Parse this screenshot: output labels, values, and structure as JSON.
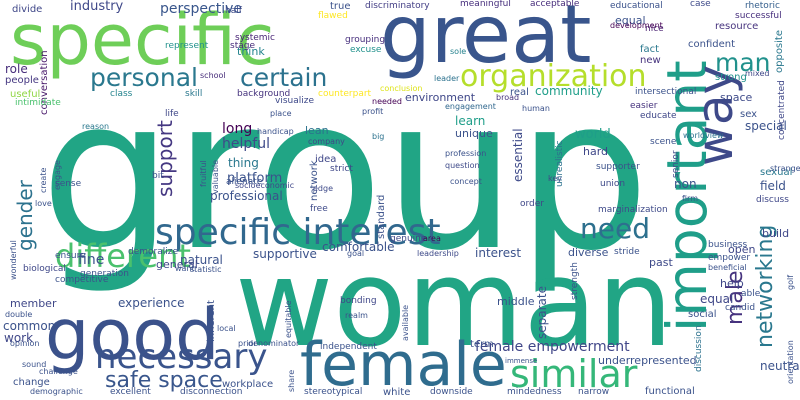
{
  "words": [
    {
      "text": "group",
      "color": "#21a585"
    },
    {
      "text": "woman",
      "color": "#21a585"
    },
    {
      "text": "great",
      "color": "#39558c"
    },
    {
      "text": "specific",
      "color": "#6ece58"
    },
    {
      "text": "important",
      "color": "#1f9e89"
    },
    {
      "text": "female",
      "color": "#2f6c8e"
    },
    {
      "text": "good",
      "color": "#3b528b"
    },
    {
      "text": "way",
      "color": "#3e4989"
    },
    {
      "text": "specific interest",
      "color": "#31688e"
    },
    {
      "text": "organization",
      "color": "#b5de2b"
    },
    {
      "text": "similar",
      "color": "#35b779"
    },
    {
      "text": "personal",
      "color": "#2a788e"
    },
    {
      "text": "certain",
      "color": "#2c728e"
    },
    {
      "text": "different",
      "color": "#4ac16d"
    },
    {
      "text": "necessary",
      "color": "#3a548c"
    },
    {
      "text": "networking",
      "color": "#2a788e"
    },
    {
      "text": "need",
      "color": "#2d708e"
    },
    {
      "text": "man",
      "color": "#21918c"
    },
    {
      "text": "gender",
      "color": "#2c728e"
    },
    {
      "text": "support",
      "color": "#453882"
    },
    {
      "text": "male",
      "color": "#46337e"
    },
    {
      "text": "safe space",
      "color": "#39568c"
    },
    {
      "text": "female empowerment",
      "color": "#404688"
    },
    {
      "text": "industry",
      "color": "#3f4889"
    },
    {
      "text": "perspective",
      "color": "#39568c"
    },
    {
      "text": "divide",
      "color": "#3f4788"
    },
    {
      "text": "conversation",
      "color": "#48186a"
    },
    {
      "text": "role",
      "color": "#472d7b"
    },
    {
      "text": "people",
      "color": "#453781"
    },
    {
      "text": "useful",
      "color": "#8fd744"
    },
    {
      "text": "intimidate",
      "color": "#4ac16d"
    },
    {
      "text": "true",
      "color": "#3b528b"
    },
    {
      "text": "discriminatory",
      "color": "#433e85"
    },
    {
      "text": "meaningful",
      "color": "#472f7d"
    },
    {
      "text": "acceptable",
      "color": "#472d7b"
    },
    {
      "text": "educational",
      "color": "#3b528b"
    },
    {
      "text": "case",
      "color": "#3e4a89"
    },
    {
      "text": "rhetoric",
      "color": "#355f8d"
    },
    {
      "text": "successful",
      "color": "#472f7d"
    },
    {
      "text": "half",
      "color": "#3e4a89"
    },
    {
      "text": "flawed",
      "color": "#fde725"
    },
    {
      "text": "grouping",
      "color": "#472f7d"
    },
    {
      "text": "excuse",
      "color": "#21918c"
    },
    {
      "text": "sole",
      "color": "#26828e"
    },
    {
      "text": "systemic",
      "color": "#482475"
    },
    {
      "text": "think",
      "color": "#25848e"
    },
    {
      "text": "stage",
      "color": "#472c7a"
    },
    {
      "text": "represent",
      "color": "#21918c"
    },
    {
      "text": "equal",
      "color": "#3b528b"
    },
    {
      "text": "nice",
      "color": "#481f70"
    },
    {
      "text": "development",
      "color": "#440154"
    },
    {
      "text": "fact",
      "color": "#2a788e"
    },
    {
      "text": "resource",
      "color": "#46337e"
    },
    {
      "text": "confident",
      "color": "#3b528b"
    },
    {
      "text": "new",
      "color": "#46337e"
    },
    {
      "text": "opposite",
      "color": "#2a788e"
    },
    {
      "text": "mixed",
      "color": "#3f4788"
    },
    {
      "text": "strong",
      "color": "#21918c"
    },
    {
      "text": "school",
      "color": "#472c7a"
    },
    {
      "text": "leader",
      "color": "#2c728e"
    },
    {
      "text": "counterpart",
      "color": "#fde725"
    },
    {
      "text": "background",
      "color": "#46337e"
    },
    {
      "text": "class",
      "color": "#25848e"
    },
    {
      "text": "skill",
      "color": "#2a788e"
    },
    {
      "text": "visualize",
      "color": "#3e4989"
    },
    {
      "text": "conclusion",
      "color": "#dde318"
    },
    {
      "text": "needed",
      "color": "#440154"
    },
    {
      "text": "environment",
      "color": "#3f4788"
    },
    {
      "text": "real",
      "color": "#3b528b"
    },
    {
      "text": "community",
      "color": "#1f9e89"
    },
    {
      "text": "intersectional",
      "color": "#3b528b"
    },
    {
      "text": "easier",
      "color": "#46337e"
    },
    {
      "text": "educate",
      "color": "#3f4788"
    },
    {
      "text": "space",
      "color": "#3e4a89"
    },
    {
      "text": "concentrated",
      "color": "#3f4788"
    },
    {
      "text": "broad",
      "color": "#46337e"
    },
    {
      "text": "engagement",
      "color": "#31688e"
    },
    {
      "text": "human",
      "color": "#3b528b"
    },
    {
      "text": "sex",
      "color": "#3b528b"
    },
    {
      "text": "special",
      "color": "#3b528b"
    },
    {
      "text": "worldview",
      "color": "#2c728e"
    },
    {
      "text": "scene",
      "color": "#3b528b"
    },
    {
      "text": "reason",
      "color": "#2a788e"
    },
    {
      "text": "life",
      "color": "#3f4788"
    },
    {
      "text": "handicap",
      "color": "#3b528b"
    },
    {
      "text": "place",
      "color": "#3b528b"
    },
    {
      "text": "lean",
      "color": "#2c728e"
    },
    {
      "text": "company",
      "color": "#3f4788"
    },
    {
      "text": "profit",
      "color": "#3b528b"
    },
    {
      "text": "learn",
      "color": "#1f9e89"
    },
    {
      "text": "unique",
      "color": "#3b528b"
    },
    {
      "text": "world",
      "color": "#1f9e89"
    },
    {
      "text": "long",
      "color": "#440154"
    },
    {
      "text": "helpful",
      "color": "#3e4a89"
    },
    {
      "text": "thing",
      "color": "#2a788e"
    },
    {
      "text": "platform",
      "color": "#3b528b"
    },
    {
      "text": "professional",
      "color": "#3b528b"
    },
    {
      "text": "idea",
      "color": "#3f4788"
    },
    {
      "text": "network",
      "color": "#3b528b"
    },
    {
      "text": "big",
      "color": "#2c728e"
    },
    {
      "text": "profession",
      "color": "#3b528b"
    },
    {
      "text": "essential",
      "color": "#3e4a89"
    },
    {
      "text": "hard",
      "color": "#3f4788"
    },
    {
      "text": "non",
      "color": "#3b528b"
    },
    {
      "text": "field",
      "color": "#3b528b"
    },
    {
      "text": "firm",
      "color": "#3b528b"
    },
    {
      "text": "discuss",
      "color": "#3f4788"
    },
    {
      "text": "sexual",
      "color": "#2a788e"
    },
    {
      "text": "strange",
      "color": "#3b528b"
    },
    {
      "text": "question",
      "color": "#3e4a89"
    },
    {
      "text": "strict",
      "color": "#3f4788"
    },
    {
      "text": "concept",
      "color": "#3b528b"
    },
    {
      "text": "union",
      "color": "#3e4a89"
    },
    {
      "text": "key",
      "color": "#3f4788"
    },
    {
      "text": "supporter",
      "color": "#3b528b"
    },
    {
      "text": "unrealistic",
      "color": "#2c728e"
    },
    {
      "text": "senior",
      "color": "#3e4a89"
    },
    {
      "text": "edge",
      "color": "#3e4a89"
    },
    {
      "text": "socioeconomic",
      "color": "#3f4788"
    },
    {
      "text": "free",
      "color": "#3e4a89"
    },
    {
      "text": "standard",
      "color": "#3b528b"
    },
    {
      "text": "order",
      "color": "#3f4788"
    },
    {
      "text": "marginalization",
      "color": "#3e4a89"
    },
    {
      "text": "business",
      "color": "#3b528b"
    },
    {
      "text": "genuine",
      "color": "#3f4788"
    },
    {
      "text": "area",
      "color": "#440154"
    },
    {
      "text": "goal",
      "color": "#3b528b"
    },
    {
      "text": "interest",
      "color": "#3b528b"
    },
    {
      "text": "leadership",
      "color": "#3e4a89"
    },
    {
      "text": "fine",
      "color": "#3b528b"
    },
    {
      "text": "natural",
      "color": "#3b528b"
    },
    {
      "text": "supportive",
      "color": "#3b528b"
    },
    {
      "text": "comfortable",
      "color": "#3b528b"
    },
    {
      "text": "diverse",
      "color": "#3b528b"
    },
    {
      "text": "stride",
      "color": "#3b528b"
    },
    {
      "text": "past",
      "color": "#3e4a89"
    },
    {
      "text": "open",
      "color": "#3f4788"
    },
    {
      "text": "empower",
      "color": "#3b528b"
    },
    {
      "text": "beneficial",
      "color": "#3b528b"
    },
    {
      "text": "build",
      "color": "#3f4788"
    },
    {
      "text": "golf",
      "color": "#3b528b"
    },
    {
      "text": "able",
      "color": "#3b528b"
    },
    {
      "text": "help",
      "color": "#3f4788"
    },
    {
      "text": "equal",
      "color": "#3f4788"
    },
    {
      "text": "candid",
      "color": "#3b528b"
    },
    {
      "text": "social",
      "color": "#3b528b"
    },
    {
      "text": "discussion",
      "color": "#2c728e"
    },
    {
      "text": "strength",
      "color": "#3b528b"
    },
    {
      "text": "middle",
      "color": "#3b528b"
    },
    {
      "text": "separate",
      "color": "#3b528b"
    },
    {
      "text": "ensure",
      "color": "#3b528b"
    },
    {
      "text": "demoralize",
      "color": "#3b528b"
    },
    {
      "text": "general",
      "color": "#3f4788"
    },
    {
      "text": "want",
      "color": "#3b528b"
    },
    {
      "text": "biological",
      "color": "#3f4788"
    },
    {
      "text": "competitive",
      "color": "#3b528b"
    },
    {
      "text": "member",
      "color": "#3f4788"
    },
    {
      "text": "experience",
      "color": "#3b528b"
    },
    {
      "text": "common",
      "color": "#3b528b"
    },
    {
      "text": "work",
      "color": "#3f4788"
    },
    {
      "text": "double",
      "color": "#3b528b"
    },
    {
      "text": "opinion",
      "color": "#3b528b"
    },
    {
      "text": "change",
      "color": "#3b528b"
    },
    {
      "text": "demographic",
      "color": "#3b528b"
    },
    {
      "text": "sound",
      "color": "#3b528b"
    },
    {
      "text": "challenge",
      "color": "#3b528b"
    },
    {
      "text": "inherent",
      "color": "#3b528b"
    },
    {
      "text": "bonding",
      "color": "#3f4788"
    },
    {
      "text": "realm",
      "color": "#3b528b"
    },
    {
      "text": "available",
      "color": "#3b528b"
    },
    {
      "text": "local",
      "color": "#3b528b"
    },
    {
      "text": "equitable",
      "color": "#3b528b"
    },
    {
      "text": "denominator",
      "color": "#3b528b"
    },
    {
      "text": "prior",
      "color": "#3b528b"
    },
    {
      "text": "independent",
      "color": "#3b528b"
    },
    {
      "text": "term",
      "color": "#3b528b"
    },
    {
      "text": "underrepresented",
      "color": "#3b528b"
    },
    {
      "text": "workplace",
      "color": "#3b528b"
    },
    {
      "text": "share",
      "color": "#3b528b"
    },
    {
      "text": "stereotypical",
      "color": "#3b528b"
    },
    {
      "text": "white",
      "color": "#3b528b"
    },
    {
      "text": "downside",
      "color": "#3b528b"
    },
    {
      "text": "mindedness",
      "color": "#3b528b"
    },
    {
      "text": "narrow",
      "color": "#3b528b"
    },
    {
      "text": "functional",
      "color": "#3b528b"
    },
    {
      "text": "neutral",
      "color": "#3b528b"
    },
    {
      "text": "orientation",
      "color": "#3b528b"
    },
    {
      "text": "excellent",
      "color": "#3b528b"
    },
    {
      "text": "disconnection",
      "color": "#3b528b"
    },
    {
      "text": "alienate",
      "color": "#3b528b"
    },
    {
      "text": "generation",
      "color": "#3b528b"
    },
    {
      "text": "statistic",
      "color": "#3b528b"
    },
    {
      "text": "valuable",
      "color": "#3b528b"
    },
    {
      "text": "fruitful",
      "color": "#3b528b"
    },
    {
      "text": "bit",
      "color": "#3b528b"
    },
    {
      "text": "sense",
      "color": "#3b528b"
    },
    {
      "text": "create",
      "color": "#3b528b"
    },
    {
      "text": "engage",
      "color": "#3b528b"
    },
    {
      "text": "love",
      "color": "#3b528b"
    },
    {
      "text": "wonderful",
      "color": "#3b528b"
    },
    {
      "text": "immense",
      "color": "#3b528b"
    }
  ]
}
